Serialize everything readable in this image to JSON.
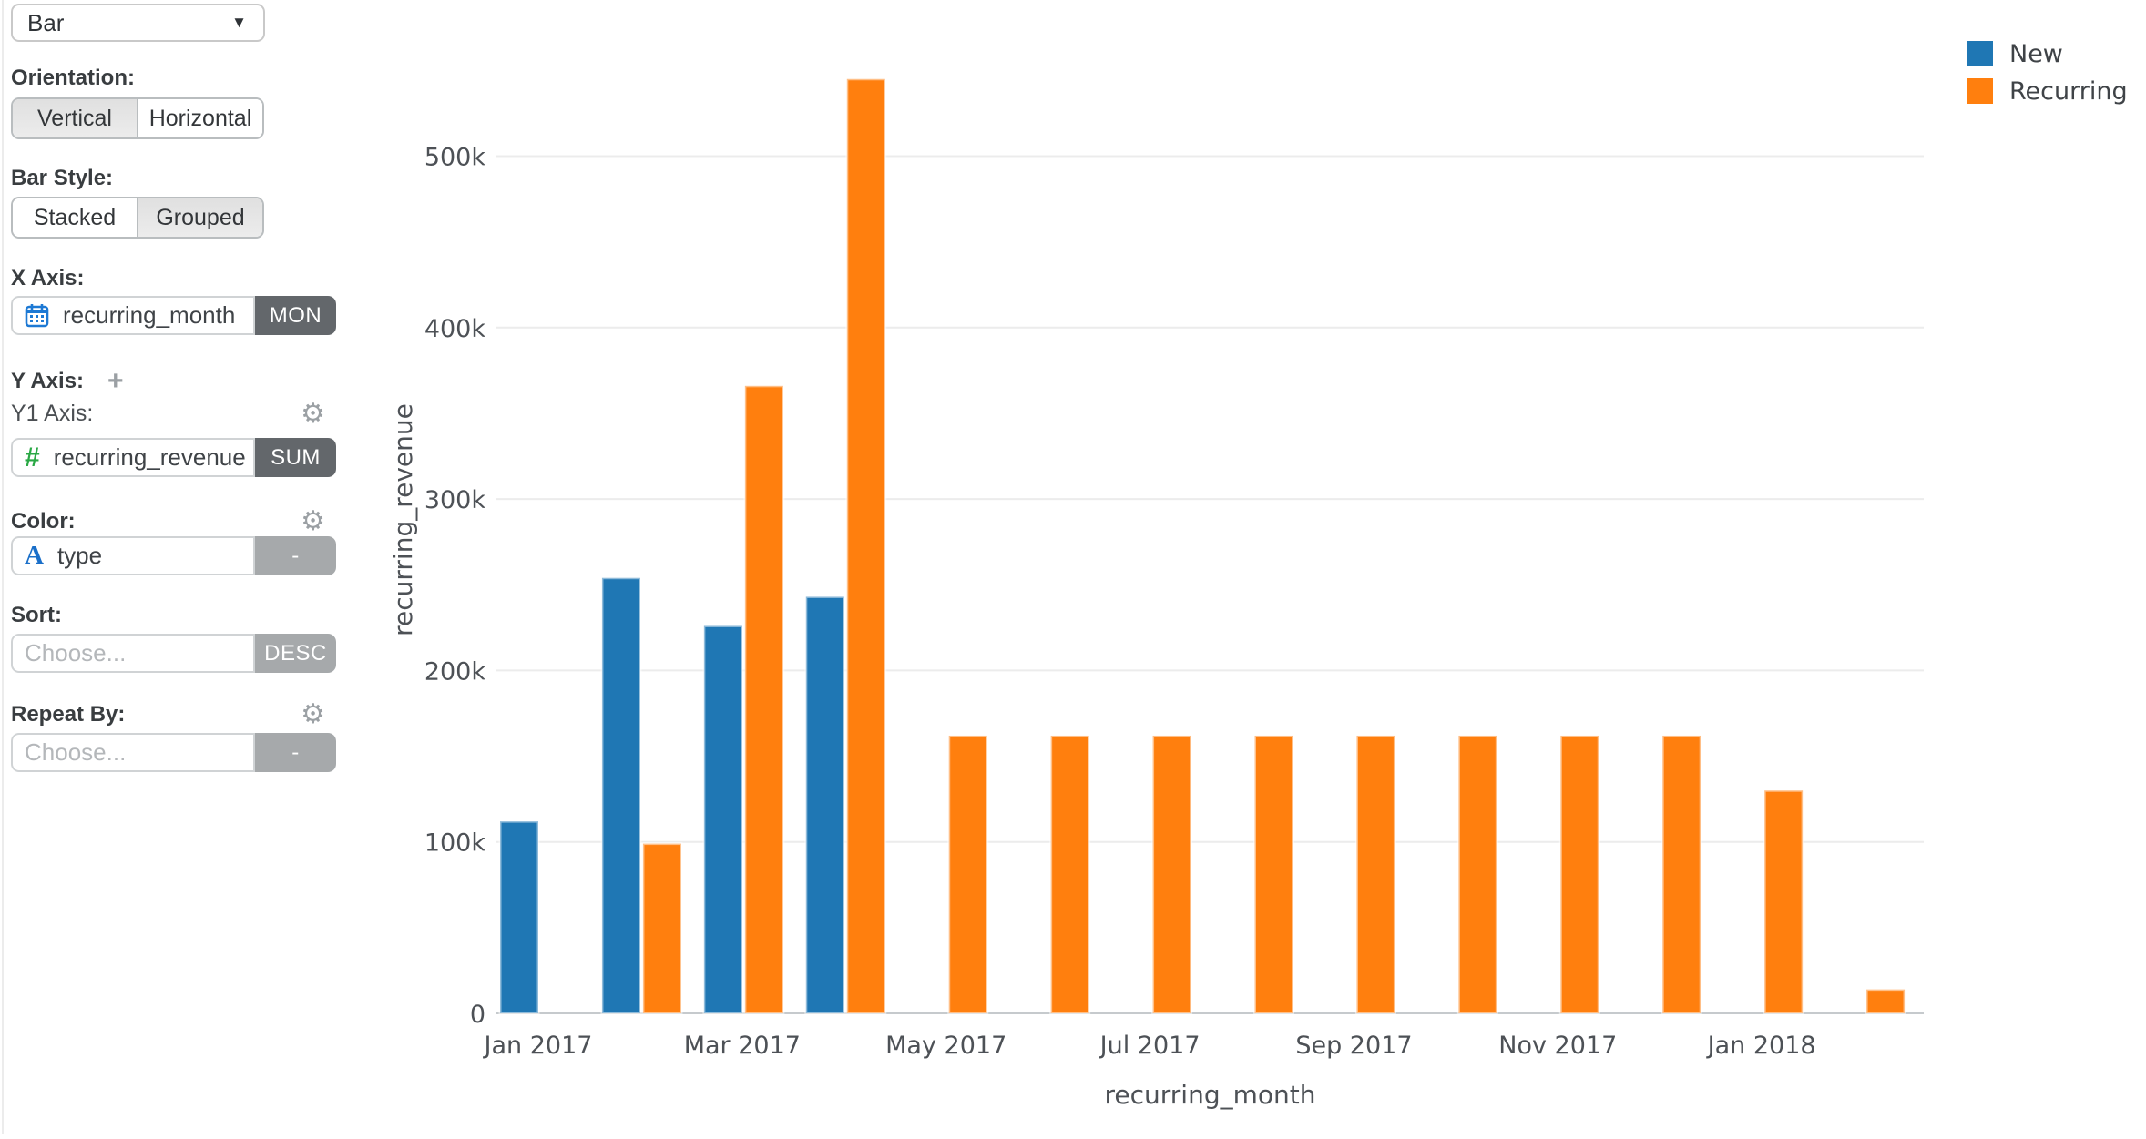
{
  "sidebar": {
    "chart_type": {
      "value": "Bar",
      "caret_glyph": "▼"
    },
    "orientation": {
      "label": "Orientation:",
      "options": [
        "Vertical",
        "Horizontal"
      ],
      "selected": "Vertical"
    },
    "bar_style": {
      "label": "Bar Style:",
      "options": [
        "Stacked",
        "Grouped"
      ],
      "selected": "Grouped"
    },
    "x_axis": {
      "label": "X Axis:",
      "field": "recurring_month",
      "field_icon": "calendar-icon",
      "badge": "MON"
    },
    "y_axis": {
      "label": "Y Axis:",
      "plus_glyph": "+",
      "y1_label": "Y1 Axis:",
      "gear_glyph": "⚙",
      "field": "recurring_revenue",
      "field_icon_glyph": "#",
      "badge": "SUM"
    },
    "color": {
      "label": "Color:",
      "gear_glyph": "⚙",
      "field": "type",
      "field_icon_glyph": "A",
      "badge": "-"
    },
    "sort": {
      "label": "Sort:",
      "placeholder": "Choose...",
      "badge": "DESC"
    },
    "repeat_by": {
      "label": "Repeat By:",
      "gear_glyph": "⚙",
      "placeholder": "Choose...",
      "badge": "-"
    }
  },
  "chart_data": {
    "type": "bar",
    "bar_style": "grouped",
    "orientation": "vertical",
    "xlabel": "recurring_month",
    "ylabel": "recurring_revenue",
    "categories": [
      "Jan 2017",
      "Feb 2017",
      "Mar 2017",
      "Apr 2017",
      "May 2017",
      "Jun 2017",
      "Jul 2017",
      "Aug 2017",
      "Sep 2017",
      "Oct 2017",
      "Nov 2017",
      "Dec 2017",
      "Jan 2018",
      "Feb 2018"
    ],
    "series": [
      {
        "name": "New",
        "color": "#1f77b4",
        "values": [
          112000,
          254000,
          226000,
          243000,
          null,
          null,
          null,
          null,
          null,
          null,
          null,
          null,
          null,
          null
        ]
      },
      {
        "name": "Recurring",
        "color": "#ff7f0e",
        "values": [
          null,
          99000,
          366000,
          545000,
          162000,
          162000,
          162000,
          162000,
          162000,
          162000,
          162000,
          162000,
          130000,
          14000
        ]
      }
    ],
    "ylim": [
      0,
      560000
    ],
    "yticks": [
      {
        "value": 0,
        "label": "0"
      },
      {
        "value": 100000,
        "label": "100k"
      },
      {
        "value": 200000,
        "label": "200k"
      },
      {
        "value": 300000,
        "label": "300k"
      },
      {
        "value": 400000,
        "label": "400k"
      },
      {
        "value": 500000,
        "label": "500k"
      }
    ],
    "xticks": [
      {
        "index": 0,
        "label": "Jan 2017"
      },
      {
        "index": 2,
        "label": "Mar 2017"
      },
      {
        "index": 4,
        "label": "May 2017"
      },
      {
        "index": 6,
        "label": "Jul 2017"
      },
      {
        "index": 8,
        "label": "Sep 2017"
      },
      {
        "index": 10,
        "label": "Nov 2017"
      },
      {
        "index": 12,
        "label": "Jan 2018"
      }
    ],
    "grid": "horizontal",
    "legend_position": "top-right"
  },
  "colors": {
    "grid_line": "#ececec",
    "axis_line": "#c6cacd",
    "chart_text": "#4d5156",
    "badge_dark": "#63676b",
    "badge_light": "#a6a9ab"
  }
}
